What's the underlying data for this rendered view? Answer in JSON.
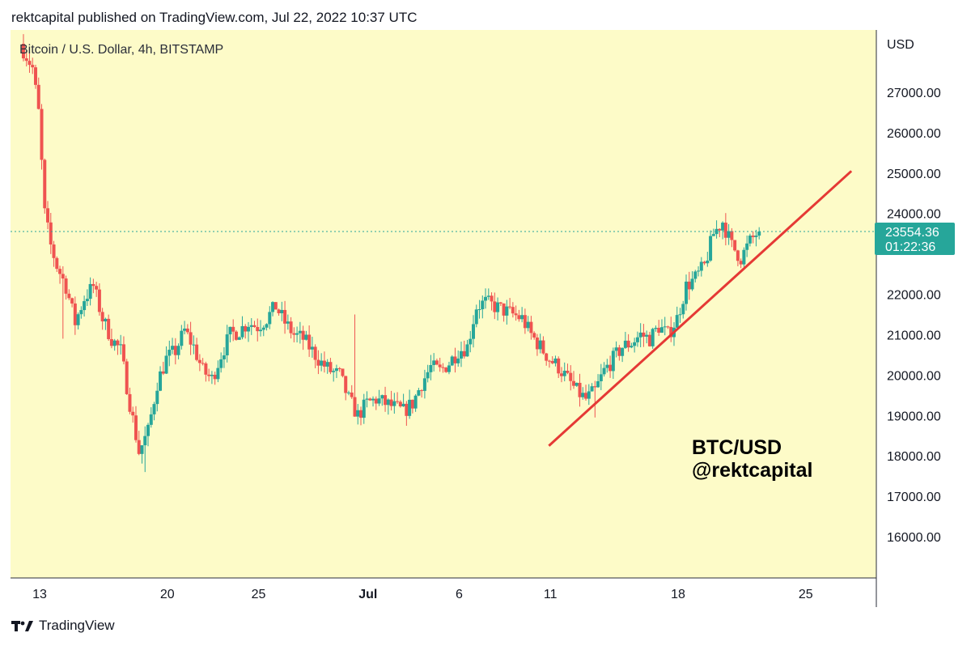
{
  "header": {
    "title": "rektcapital published on TradingView.com, Jul 22, 2022 10:37 UTC"
  },
  "footer": {
    "brand": "TradingView"
  },
  "colors": {
    "background": "#fdfbc8",
    "up": "#26a69a",
    "down": "#ef5350",
    "trendline": "#e53935",
    "price_tag": "#26a69a",
    "axis_text": "#131722"
  },
  "chart_data": {
    "type": "candlestick",
    "title": "Bitcoin / U.S. Dollar, 4h, BITSTAMP",
    "ylabel": "USD",
    "ylim": [
      15000,
      28500
    ],
    "yticks": [
      16000,
      17000,
      18000,
      19000,
      20000,
      21000,
      22000,
      23000,
      24000,
      25000,
      26000,
      27000
    ],
    "ytick_labels": [
      "16000.00",
      "17000.00",
      "18000.00",
      "19000.00",
      "20000.00",
      "21000.00",
      "22000.00",
      "",
      "24000.00",
      "25000.00",
      "26000.00",
      "27000.00"
    ],
    "xlim": [
      "2022-06-12",
      "2022-06-27"
    ],
    "xticks": [
      {
        "label": "13",
        "date": "2022-06-13"
      },
      {
        "label": "20",
        "date": "2022-06-20"
      },
      {
        "label": "25",
        "date": "2022-06-25"
      },
      {
        "label": "Jul",
        "date": "2022-07-01"
      },
      {
        "label": "6",
        "date": "2022-07-06"
      },
      {
        "label": "11",
        "date": "2022-07-11"
      },
      {
        "label": "18",
        "date": "2022-07-18"
      },
      {
        "label": "25",
        "date": "2022-07-25"
      }
    ],
    "price_path": [
      [
        "2022-06-12",
        28200
      ],
      [
        "2022-06-12T16:00",
        27600
      ],
      [
        "2022-06-13",
        26500
      ],
      [
        "2022-06-13T08:00",
        24000
      ],
      [
        "2022-06-13T16:00",
        23200
      ],
      [
        "2022-06-14",
        22700
      ],
      [
        "2022-06-14T12:00",
        22200
      ],
      [
        "2022-06-15",
        21300
      ],
      [
        "2022-06-15T12:00",
        21900
      ],
      [
        "2022-06-16",
        22200
      ],
      [
        "2022-06-16T12:00",
        21400
      ],
      [
        "2022-06-17",
        20900
      ],
      [
        "2022-06-17T12:00",
        20600
      ],
      [
        "2022-06-18",
        19300
      ],
      [
        "2022-06-18T12:00",
        18100
      ],
      [
        "2022-06-19",
        18600
      ],
      [
        "2022-06-19T12:00",
        19800
      ],
      [
        "2022-06-20",
        20400
      ],
      [
        "2022-06-20T12:00",
        20600
      ],
      [
        "2022-06-21",
        21100
      ],
      [
        "2022-06-21T12:00",
        20700
      ],
      [
        "2022-06-22",
        20100
      ],
      [
        "2022-06-22T12:00",
        19900
      ],
      [
        "2022-06-23",
        20500
      ],
      [
        "2022-06-23T12:00",
        21000
      ],
      [
        "2022-06-24",
        21100
      ],
      [
        "2022-06-24T12:00",
        21300
      ],
      [
        "2022-06-25",
        21200
      ],
      [
        "2022-06-25T12:00",
        21400
      ],
      [
        "2022-06-26",
        21700
      ],
      [
        "2022-06-26T12:00",
        21300
      ],
      [
        "2022-06-27",
        21000
      ],
      [
        "2022-06-27T12:00",
        20900
      ],
      [
        "2022-06-28",
        20600
      ],
      [
        "2022-06-28T12:00",
        20300
      ],
      [
        "2022-06-29",
        20100
      ],
      [
        "2022-06-29T12:00",
        20000
      ],
      [
        "2022-06-30",
        19400
      ],
      [
        "2022-06-30T12:00",
        19000
      ],
      [
        "2022-07-01",
        19300
      ],
      [
        "2022-07-01T12:00",
        19400
      ],
      [
        "2022-07-02",
        19300
      ],
      [
        "2022-07-02T12:00",
        19200
      ],
      [
        "2022-07-03",
        19100
      ],
      [
        "2022-07-03T12:00",
        19300
      ],
      [
        "2022-07-04",
        19800
      ],
      [
        "2022-07-04T12:00",
        20200
      ],
      [
        "2022-07-05",
        20100
      ],
      [
        "2022-07-05T12:00",
        20300
      ],
      [
        "2022-07-06",
        20600
      ],
      [
        "2022-07-06T12:00",
        20700
      ],
      [
        "2022-07-07",
        21700
      ],
      [
        "2022-07-07T12:00",
        21800
      ],
      [
        "2022-07-08",
        21700
      ],
      [
        "2022-07-08T12:00",
        21600
      ],
      [
        "2022-07-09",
        21500
      ],
      [
        "2022-07-09T12:00",
        21400
      ],
      [
        "2022-07-10",
        21000
      ],
      [
        "2022-07-10T12:00",
        20700
      ],
      [
        "2022-07-11",
        20400
      ],
      [
        "2022-07-11T12:00",
        20200
      ],
      [
        "2022-07-12",
        19900
      ],
      [
        "2022-07-12T12:00",
        19600
      ],
      [
        "2022-07-13",
        19400
      ],
      [
        "2022-07-13T12:00",
        19600
      ],
      [
        "2022-07-14",
        20100
      ],
      [
        "2022-07-14T12:00",
        20400
      ],
      [
        "2022-07-15",
        20700
      ],
      [
        "2022-07-15T12:00",
        20800
      ],
      [
        "2022-07-16",
        21000
      ],
      [
        "2022-07-16T12:00",
        20900
      ],
      [
        "2022-07-17",
        21200
      ],
      [
        "2022-07-17T12:00",
        21000
      ],
      [
        "2022-07-18",
        21400
      ],
      [
        "2022-07-18T12:00",
        22200
      ],
      [
        "2022-07-19",
        22400
      ],
      [
        "2022-07-19T12:00",
        22700
      ],
      [
        "2022-07-20",
        23500
      ],
      [
        "2022-07-20T12:00",
        23800
      ],
      [
        "2022-07-21",
        23200
      ],
      [
        "2022-07-21T12:00",
        22900
      ],
      [
        "2022-07-22",
        23300
      ],
      [
        "2022-07-22T10:37",
        23554
      ]
    ],
    "spikes": [
      {
        "date": "2022-06-14T04:00",
        "low": 20900
      },
      {
        "date": "2022-06-18T16:00",
        "low": 17600
      },
      {
        "date": "2022-06-30T04:00",
        "high": 21500
      },
      {
        "date": "2022-07-13T08:00",
        "low": 18950
      }
    ],
    "last_price": {
      "value": 23554.36,
      "label": "23554.36",
      "countdown": "01:22:36"
    },
    "trendline": {
      "x1": "2022-07-10T22:00",
      "y1": 18250,
      "x2": "2022-07-27T12:00",
      "y2": 25050
    },
    "annotation": {
      "line1": "BTC/USD",
      "line2": "@rektcapital"
    }
  }
}
